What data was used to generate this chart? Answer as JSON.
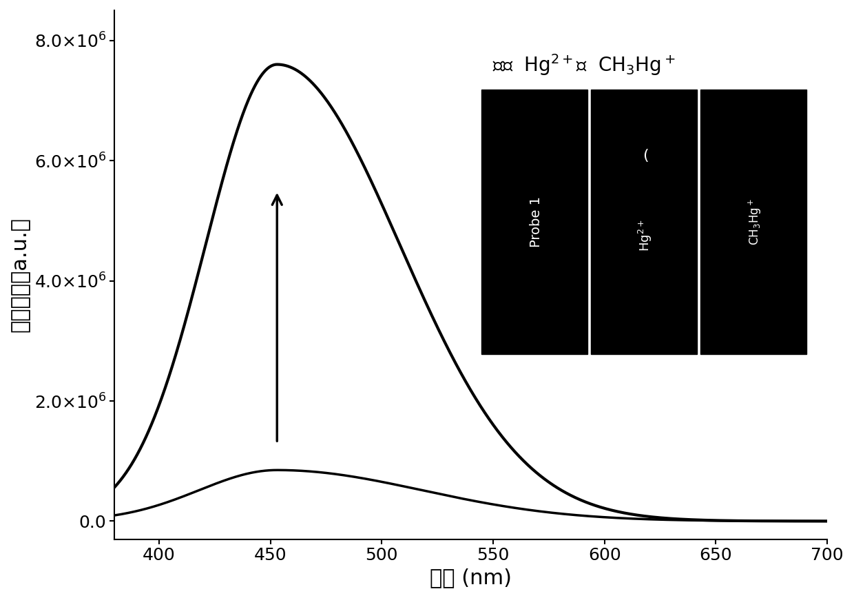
{
  "xlabel": "波长 (nm)",
  "ylabel": "荧光强度（a.u.）",
  "xlim": [
    380,
    700
  ],
  "ylim": [
    -300000.0,
    8500000.0
  ],
  "yticks": [
    0,
    2000000.0,
    4000000.0,
    6000000.0,
    8000000.0
  ],
  "ytick_labels": [
    "0.0",
    "2.0×10⁶",
    "4.0×10⁶",
    "6.0×10⁶",
    "8.0×10⁶"
  ],
  "xticks": [
    400,
    450,
    500,
    550,
    600,
    650,
    700
  ],
  "annotation_text": "加入  Hg²⁺或  CH₃Hg⁺",
  "curve1_peak_x": 453,
  "curve1_peak_y": 7600000.0,
  "curve2_peak_x": 453,
  "curve2_peak_y": 850000.0,
  "line_color": "#000000",
  "line_width": 2.5,
  "background_color": "#ffffff",
  "inset_labels": [
    "Probe 1",
    "Hg²⁺",
    "CH₃Hg⁺"
  ],
  "xlabel_fontsize": 22,
  "ylabel_fontsize": 22,
  "tick_fontsize": 18
}
